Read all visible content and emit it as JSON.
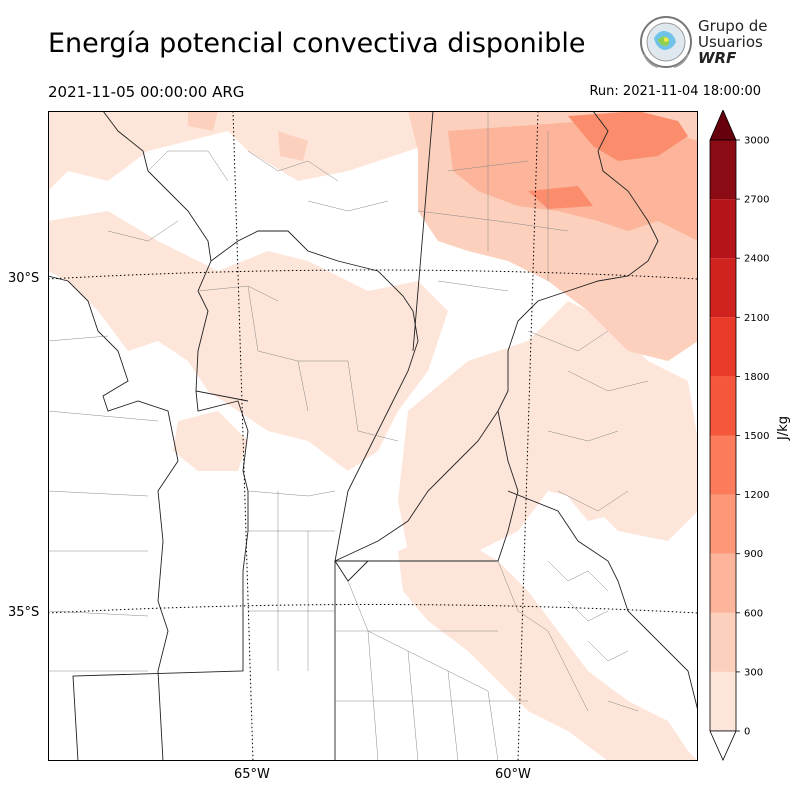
{
  "title": "Energía potencial convectiva disponible",
  "valid_time": "2021-11-05 00:00:00 ARG",
  "run_time": "Run: 2021-11-04 18:00:00",
  "logo": {
    "line1": "Grupo de",
    "line2": "Usuarios",
    "line3": "WRF"
  },
  "lat_labels": [
    "30°S",
    "35°S"
  ],
  "lon_labels": [
    "65°W",
    "60°W"
  ],
  "colorbar": {
    "unit": "J/kg",
    "ticks": [
      "0",
      "300",
      "600",
      "900",
      "1200",
      "1500",
      "1800",
      "2100",
      "2400",
      "2700",
      "3000"
    ],
    "colors": [
      "#fee5d9",
      "#fcd0bd",
      "#fcb49a",
      "#fc9777",
      "#fb7b5a",
      "#f5573d",
      "#ea3a2a",
      "#d0231f",
      "#b51519",
      "#8a0b13"
    ],
    "over_color": "#67000d"
  }
}
